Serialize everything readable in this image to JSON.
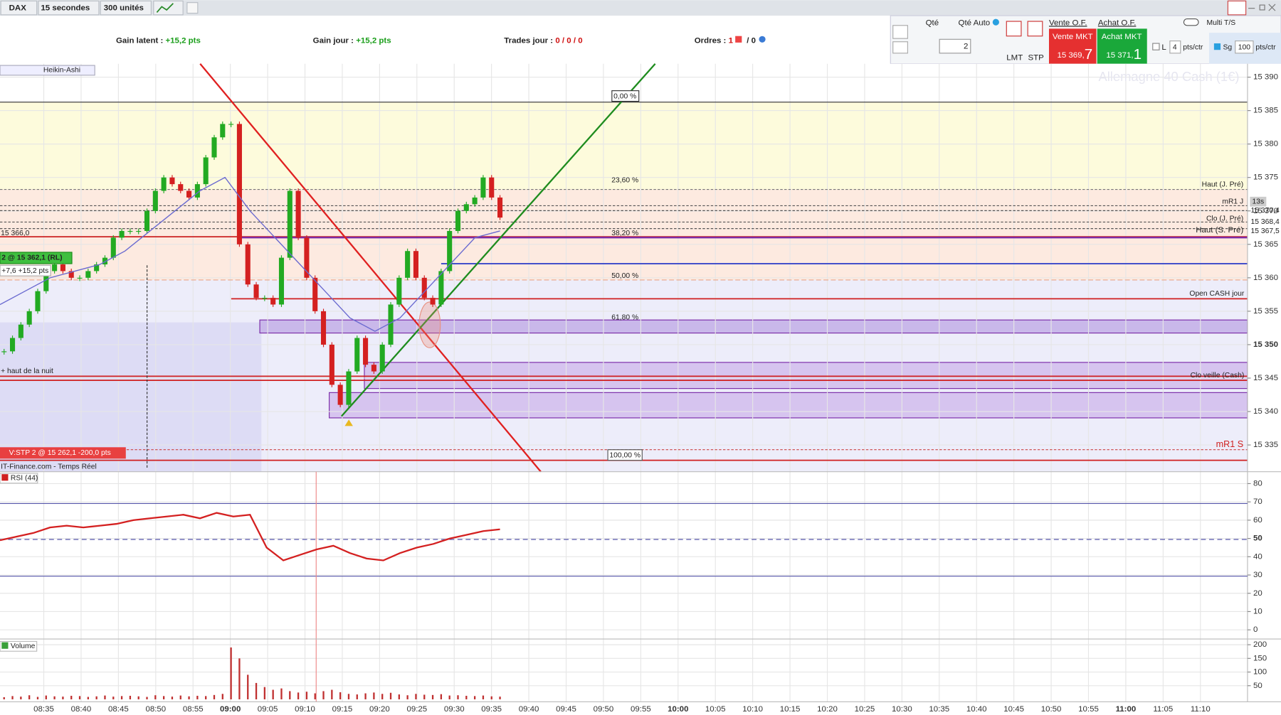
{
  "toolbar": {
    "instrument": "DAX",
    "period": "15 secondes",
    "units": "300 unités"
  },
  "stats": [
    {
      "label": "Gain latent :",
      "value": "+15,2 pts"
    },
    {
      "label": "Gain jour :",
      "value": "+15,2 pts"
    },
    {
      "label": "Trades jour :",
      "value": "0 / 0 / 0"
    },
    {
      "label": "Ordres :",
      "value": "1",
      "extra": "/ 0"
    }
  ],
  "order_panel": {
    "qty_label": "Qté",
    "qty_auto_label": "Qté Auto",
    "qty": "2",
    "lmt": "LMT",
    "stp": "STP",
    "sell_of": "Vente O.F.",
    "buy_of": "Achat O.F.",
    "sell_mkt": "Vente MKT",
    "sell_price": "15 369,",
    "sell_price_last": "7",
    "buy_mkt": "Achat MKT",
    "buy_price": "15 371,",
    "buy_price_last": "1",
    "l_label": "L",
    "l_value": "4",
    "l_unit": "pts/ctr",
    "sg_label": "Sg",
    "sg_value": "100",
    "sg_unit": "pts/ctr",
    "multi_ts": "Multi T/S"
  },
  "annotations": {
    "fib": [
      "0,00 %",
      "23,60 %",
      "38,20 %",
      "50,00 %",
      "61,80 %",
      "100,00 %"
    ],
    "levels": [
      "Haut (J. Pré)",
      "mR1 J",
      "Clo (J. Pré)",
      "Haut (S. Pré)",
      "Open CASH jour",
      "Clo veille (Cash)",
      "mR1 S"
    ],
    "position_price": "15 366,0",
    "position": "2 @ 15 362,1 (RL)",
    "position_pnl": "+7,6 +15,2 pts",
    "night_high": "+ haut de la nuit",
    "stop": "V:STP 2 @ 15 262,1 -200,0 pts",
    "source": "IT-Finance.com - Temps Réel",
    "timer": "13s",
    "axis_tags": [
      "15 370,4",
      "15 368,4",
      "15 367,5"
    ]
  },
  "time_axis": [
    "08:35",
    "08:40",
    "08:45",
    "08:50",
    "08:55",
    "09:00",
    "09:05",
    "09:10",
    "09:15",
    "09:20",
    "09:25",
    "09:30",
    "09:35",
    "09:40",
    "09:45",
    "09:50",
    "09:55",
    "10:00",
    "10:05",
    "10:10",
    "10:15",
    "10:20",
    "10:25",
    "10:30",
    "10:35",
    "10:40",
    "10:45",
    "10:50",
    "10:55",
    "11:00",
    "11:05",
    "11:10"
  ],
  "chart_data": [
    {
      "type": "candlestick",
      "name": "Heikin-Ashi",
      "watermark": "Allemagne 40 Cash (1€)",
      "up_color": "#22aa22",
      "down_color": "#d42020",
      "ma_color": "#6a6ad0",
      "values": [
        15349,
        15351,
        15353,
        15355,
        15358,
        15361,
        15362,
        15361,
        15360,
        15360,
        15361,
        15362,
        15363,
        15366,
        15367,
        15367,
        15367,
        15370,
        15373,
        15375,
        15374,
        15373,
        15372,
        15374,
        15378,
        15381,
        15383,
        15383,
        15365,
        15359,
        15357,
        15357,
        15356,
        15363,
        15373,
        15366,
        15360,
        15355,
        15350,
        15344,
        15341,
        15346,
        15351,
        15347,
        15346,
        15350,
        15356,
        15360,
        15364,
        15360,
        15357,
        15356,
        15361,
        15367,
        15370,
        15371,
        15372,
        15375,
        15372,
        15369
      ],
      "ma": [
        15356,
        15358,
        15360,
        15361,
        15362,
        15364,
        15367,
        15370,
        15373,
        15375,
        15370,
        15366,
        15362,
        15358,
        15354,
        15352,
        15354,
        15358,
        15362,
        15366,
        15367
      ],
      "ylim": [
        15331,
        15392
      ],
      "yticks": [
        {
          "value": 15335,
          "label": "15 335"
        },
        {
          "value": 15340,
          "label": "15 340"
        },
        {
          "value": 15345,
          "label": "15 345"
        },
        {
          "value": 15350,
          "label": "15 350"
        },
        {
          "value": 15355,
          "label": "15 355"
        },
        {
          "value": 15360,
          "label": "15 360"
        },
        {
          "value": 15365,
          "label": "15 365"
        },
        {
          "value": 15370,
          "label": "15 370"
        },
        {
          "value": 15375,
          "label": "15 375"
        },
        {
          "value": 15380,
          "label": "15 380"
        },
        {
          "value": 15385,
          "label": "15 385"
        },
        {
          "value": 15390,
          "label": "15 390"
        }
      ],
      "grid": true
    },
    {
      "type": "line",
      "name": "RSI (44)",
      "color": "#d42020",
      "values": [
        49,
        51,
        53,
        56,
        57,
        56,
        57,
        58,
        60,
        61,
        62,
        63,
        61,
        64,
        62,
        63,
        45,
        38,
        41,
        44,
        46,
        42,
        39,
        38,
        42,
        45,
        47,
        50,
        52,
        54,
        55
      ],
      "ylim": [
        -5,
        86.5
      ],
      "yticks": [
        0,
        10,
        20,
        30,
        40,
        50,
        60,
        70,
        80
      ],
      "grid": true
    },
    {
      "type": "bar",
      "name": "Volume",
      "color": "#c03030",
      "values": [
        8,
        12,
        10,
        15,
        9,
        14,
        11,
        10,
        13,
        12,
        9,
        11,
        14,
        10,
        12,
        13,
        11,
        9,
        15,
        12,
        10,
        14,
        11,
        13,
        12,
        16,
        20,
        190,
        150,
        90,
        60,
        45,
        35,
        40,
        30,
        25,
        28,
        22,
        30,
        35,
        26,
        20,
        18,
        22,
        25,
        20,
        24,
        18,
        15,
        20,
        17,
        16,
        19,
        14,
        15,
        13,
        12,
        14,
        11,
        10
      ],
      "ylim": [
        -9,
        221
      ],
      "yticks": [
        50,
        100,
        150,
        200
      ],
      "grid": true
    }
  ]
}
